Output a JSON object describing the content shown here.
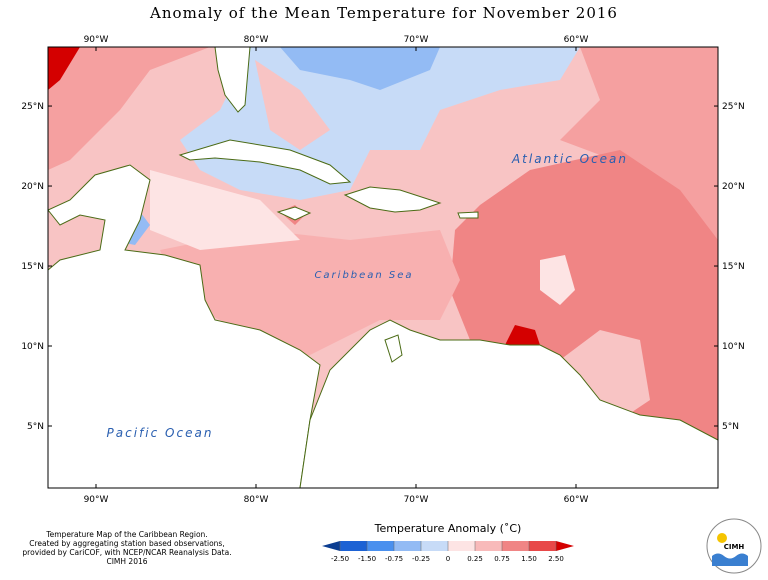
{
  "map": {
    "title": "Anomaly of the Mean Temperature for November 2016",
    "lon_range": [
      -93,
      -51.125
    ],
    "lat_range": [
      1.125,
      28.69
    ],
    "lon_ticks": [
      {
        "value": -90,
        "label": "90°W"
      },
      {
        "value": -80,
        "label": "80°W"
      },
      {
        "value": -70,
        "label": "70°W"
      },
      {
        "value": -60,
        "label": "60°W"
      }
    ],
    "lat_ticks": [
      {
        "value": 5,
        "label": "5°N"
      },
      {
        "value": 10,
        "label": "10°N"
      },
      {
        "value": 15,
        "label": "15°N"
      },
      {
        "value": 20,
        "label": "20°N"
      },
      {
        "value": 25,
        "label": "25°N"
      }
    ],
    "labels": [
      "Atlantic Ocean",
      "Caribbean Sea",
      "Pacific Ocean"
    ]
  },
  "legend": {
    "title": "Temperature Anomaly (˚C)",
    "ticks": [
      {
        "value": -2.5,
        "label": "-2.50"
      },
      {
        "value": -1.5,
        "label": "-1.50"
      },
      {
        "value": -0.75,
        "label": "-0.75"
      },
      {
        "value": -0.25,
        "label": "-0.25"
      },
      0,
      0.25,
      0.75,
      {
        "value": 1.5,
        "label": "1.50"
      },
      {
        "value": 2.5,
        "label": "2.50"
      }
    ],
    "colors": [
      "#0b3d91",
      "#1c62d4",
      "#4a90ee",
      "#93bbf4",
      "#c7dbf7",
      "#fde4e4",
      "#f8baba",
      "#f08585",
      "#e84848",
      "#d40000"
    ]
  },
  "credit": [
    "Temperature Map of the Caribbean Region.",
    "Created by aggregating station based observations,",
    "provided by CariCOF, with NCEP/NCAR Reanalysis Data.",
    "CIMH 2016"
  ],
  "logo": "CIMH"
}
